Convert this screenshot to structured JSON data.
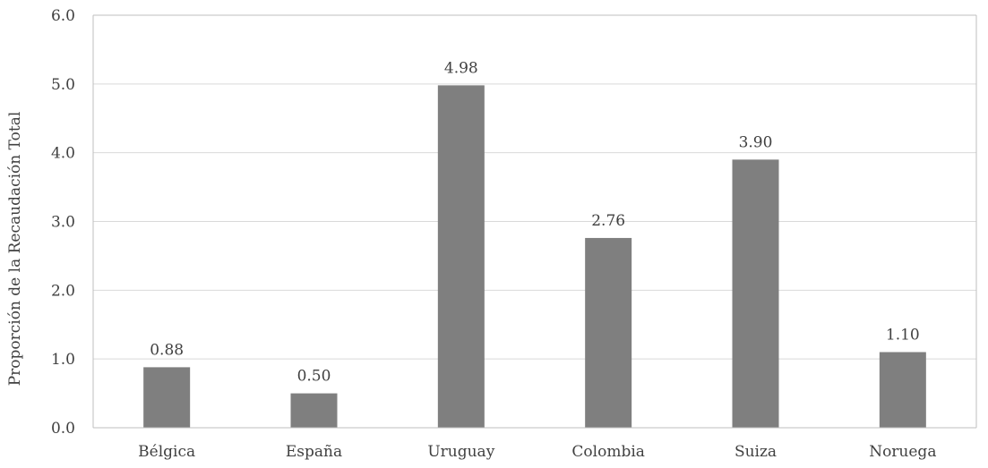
{
  "chart_data": {
    "type": "bar",
    "title": "",
    "xlabel": "",
    "ylabel": "Proporción de la Recaudación Total",
    "categories": [
      "Bélgica",
      "España",
      "Uruguay",
      "Colombia",
      "Suiza",
      "Noruega"
    ],
    "values": [
      0.88,
      0.5,
      4.98,
      2.76,
      3.9,
      1.1
    ],
    "data_labels": [
      "0.88",
      "0.50",
      "4.98",
      "2.76",
      "3.90",
      "1.10"
    ],
    "ylim": [
      0,
      6
    ],
    "yticks": [
      0,
      1,
      2,
      3,
      4,
      5,
      6
    ],
    "ytick_labels": [
      "0.0",
      "1.0",
      "2.0",
      "3.0",
      "4.0",
      "5.0",
      "6.0"
    ],
    "grid": true,
    "legend": "none",
    "colors": {
      "bar": "#7f7f7f",
      "grid": "#d9d9d9",
      "axis": "#bfbfbf",
      "text": "#404040"
    }
  }
}
